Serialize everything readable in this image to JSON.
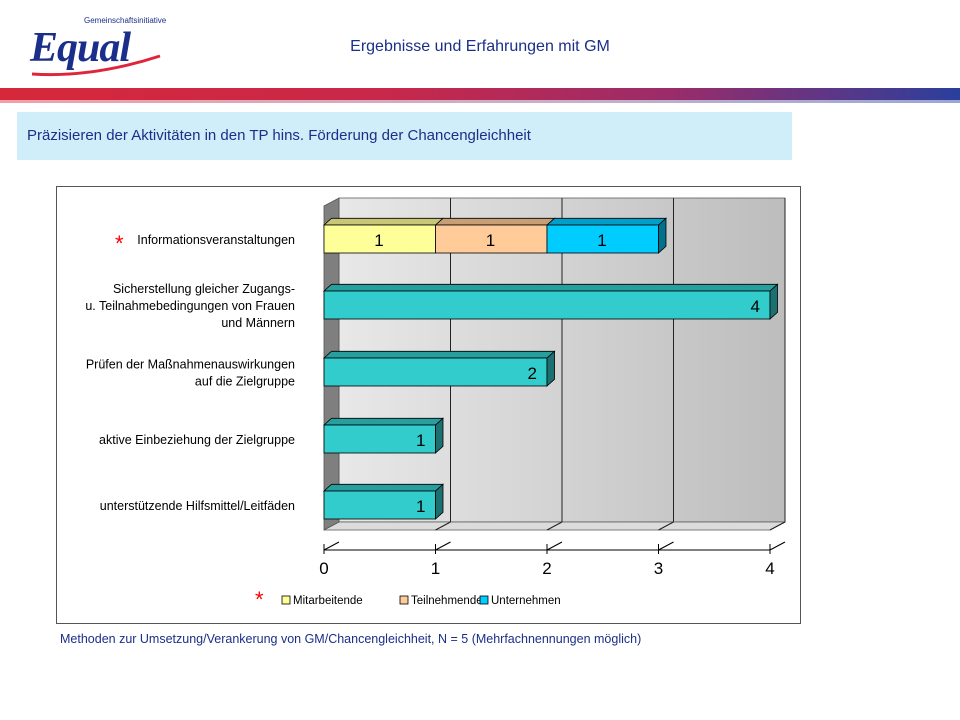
{
  "header": {
    "logo_small_text": "Gemeinschaftsinitiative",
    "logo_word": "Equal",
    "title": "Ergebnisse und Erfahrungen mit GM"
  },
  "subtitle": "Präzisieren der Aktivitäten in den TP hins. Förderung der Chancengleichheit",
  "caption": "Methoden zur Umsetzung/Verankerung von GM/Chancengleichheit, N = 5 (Mehrfachnennungen möglich)",
  "colors": {
    "mitarbeitende": "#ffff99",
    "teilnehmende": "#ffcc99",
    "unternehmen": "#00ccff",
    "single_series": "#33cccc",
    "asterisk": "#ff0000",
    "brand_blue": "#1a2f88"
  },
  "chart_data": {
    "type": "bar",
    "orientation": "horizontal",
    "stacked": true,
    "categories": [
      {
        "label_lines": [
          "Informationsveranstaltungen"
        ],
        "asterisk": "*"
      },
      {
        "label_lines": [
          "Sicherstellung gleicher Zugangs-",
          "u. Teilnahmebedingungen von Frauen",
          "und Männern"
        ]
      },
      {
        "label_lines": [
          "Prüfen der Maßnahmenauswirkungen",
          "auf die Zielgruppe"
        ]
      },
      {
        "label_lines": [
          "aktive Einbeziehung der Zielgruppe"
        ]
      },
      {
        "label_lines": [
          "unterstützende Hilfsmittel/Leitfäden"
        ]
      }
    ],
    "bars": [
      [
        {
          "series": "Mitarbeitende",
          "value": 1
        },
        {
          "series": "Teilnehmende",
          "value": 1
        },
        {
          "series": "Unternehmen",
          "value": 1
        }
      ],
      [
        {
          "series": "total",
          "value": 4
        }
      ],
      [
        {
          "series": "total",
          "value": 2
        }
      ],
      [
        {
          "series": "total",
          "value": 1
        }
      ],
      [
        {
          "series": "total",
          "value": 1
        }
      ]
    ],
    "xlim": [
      0,
      4
    ],
    "xticks": [
      "0",
      "1",
      "2",
      "3",
      "4"
    ],
    "grid": true,
    "legend": {
      "asterisk": "*",
      "entries": [
        {
          "name": "Mitarbeitende",
          "color": "#ffff99"
        },
        {
          "name": "Teilnehmende",
          "color": "#ffcc99"
        },
        {
          "name": "Unternehmen",
          "color": "#00ccff"
        }
      ],
      "placement": "bottom"
    }
  }
}
